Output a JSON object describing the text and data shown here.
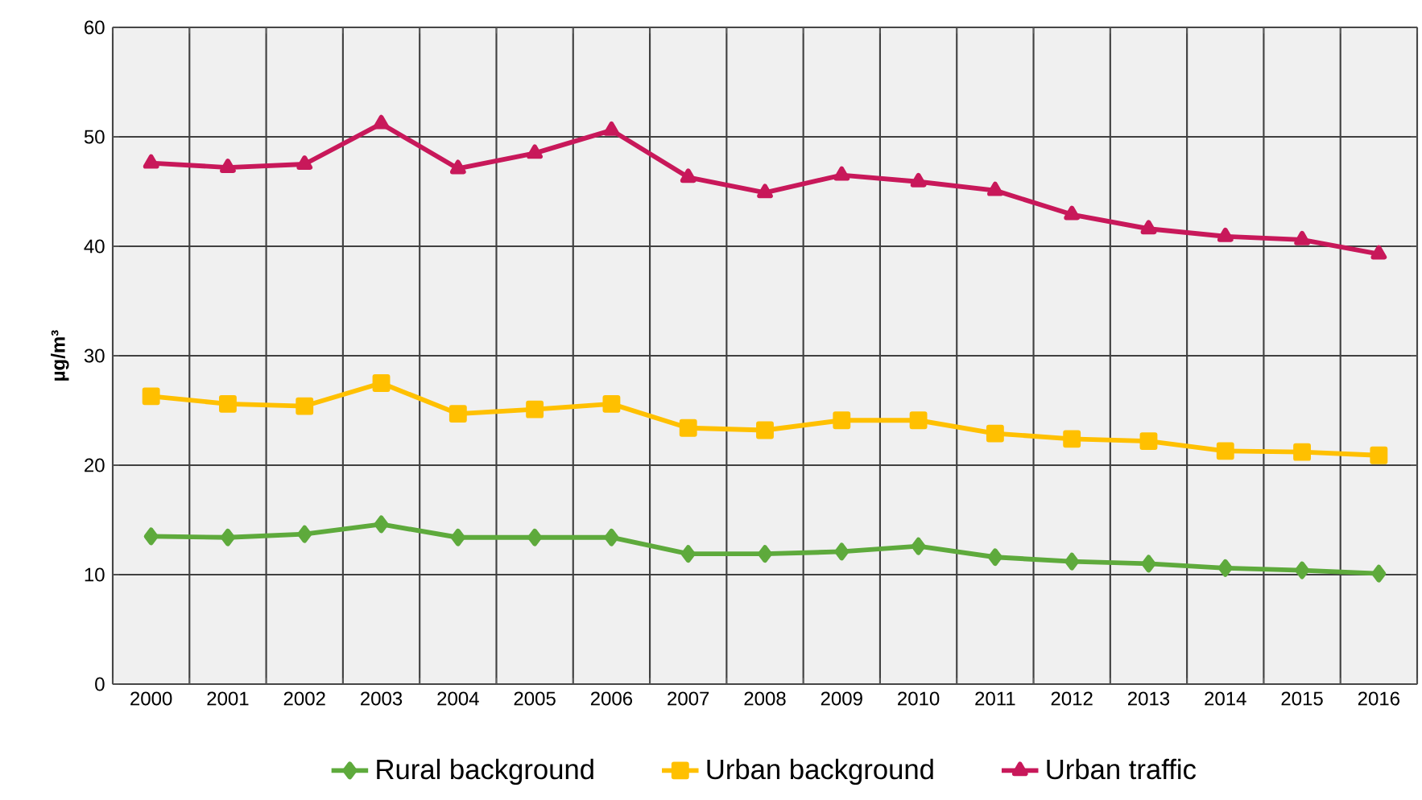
{
  "chart_data": {
    "type": "line",
    "ylabel": "µg/m³",
    "categories": [
      "2000",
      "2001",
      "2002",
      "2003",
      "2004",
      "2005",
      "2006",
      "2007",
      "2008",
      "2009",
      "2010",
      "2011",
      "2012",
      "2013",
      "2014",
      "2015",
      "2016"
    ],
    "series": [
      {
        "name": "Rural background",
        "color": "#5eaa3c",
        "marker": "diamond",
        "values": [
          13.5,
          13.4,
          13.7,
          14.6,
          13.4,
          13.4,
          13.4,
          11.9,
          11.9,
          12.1,
          12.6,
          11.6,
          11.2,
          11.0,
          10.6,
          10.4,
          10.1
        ]
      },
      {
        "name": "Urban background",
        "color": "#ffc000",
        "marker": "square",
        "values": [
          26.3,
          25.6,
          25.4,
          27.5,
          24.7,
          25.1,
          25.6,
          23.4,
          23.2,
          24.1,
          24.1,
          22.9,
          22.4,
          22.2,
          21.3,
          21.2,
          20.9
        ]
      },
      {
        "name": "Urban traffic",
        "color": "#c8185a",
        "marker": "triangle",
        "values": [
          47.6,
          47.2,
          47.5,
          51.2,
          47.1,
          48.5,
          50.6,
          46.3,
          44.9,
          46.5,
          45.9,
          45.1,
          42.9,
          41.6,
          40.9,
          40.6,
          39.3
        ]
      }
    ],
    "ylim": [
      0,
      60
    ],
    "yticks": [
      0,
      10,
      20,
      30,
      40,
      50,
      60
    ],
    "grid": true,
    "legend": "bottom",
    "line_style": "solid"
  }
}
